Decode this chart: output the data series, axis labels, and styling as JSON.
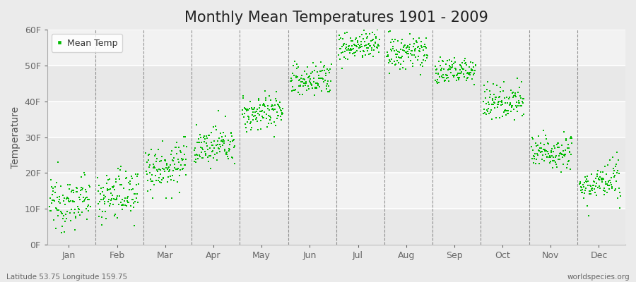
{
  "title": "Monthly Mean Temperatures 1901 - 2009",
  "ylabel": "Temperature",
  "subtitle_left": "Latitude 53.75 Longitude 159.75",
  "subtitle_right": "worldspecies.org",
  "months": [
    "Jan",
    "Feb",
    "Mar",
    "Apr",
    "May",
    "Jun",
    "Jul",
    "Aug",
    "Sep",
    "Oct",
    "Nov",
    "Dec"
  ],
  "month_means_F": [
    12.0,
    14.0,
    22.0,
    27.5,
    37.0,
    46.0,
    55.5,
    53.5,
    48.5,
    40.0,
    26.0,
    17.0
  ],
  "month_stds_F": [
    3.5,
    3.5,
    3.5,
    2.5,
    2.5,
    2.5,
    2.0,
    2.5,
    2.0,
    2.5,
    2.5,
    2.5
  ],
  "month_trend_F": [
    1.5,
    1.5,
    1.5,
    1.5,
    1.5,
    1.5,
    1.5,
    1.5,
    1.5,
    1.5,
    1.5,
    1.5
  ],
  "n_years": 109,
  "ylim": [
    0,
    60
  ],
  "yticks": [
    0,
    10,
    20,
    30,
    40,
    50,
    60
  ],
  "ytick_labels": [
    "0F",
    "10F",
    "20F",
    "30F",
    "40F",
    "50F",
    "60F"
  ],
  "dot_color": "#00bb00",
  "dot_size": 3,
  "background_color": "#ebebeb",
  "plot_bg_color": "#ebebeb",
  "grid_color": "#ffffff",
  "dashed_line_color": "#555555",
  "title_fontsize": 15,
  "axis_label_fontsize": 10,
  "tick_fontsize": 9,
  "legend_fontsize": 9,
  "band_colors": [
    "#e8e8e8",
    "#f2f2f2"
  ]
}
